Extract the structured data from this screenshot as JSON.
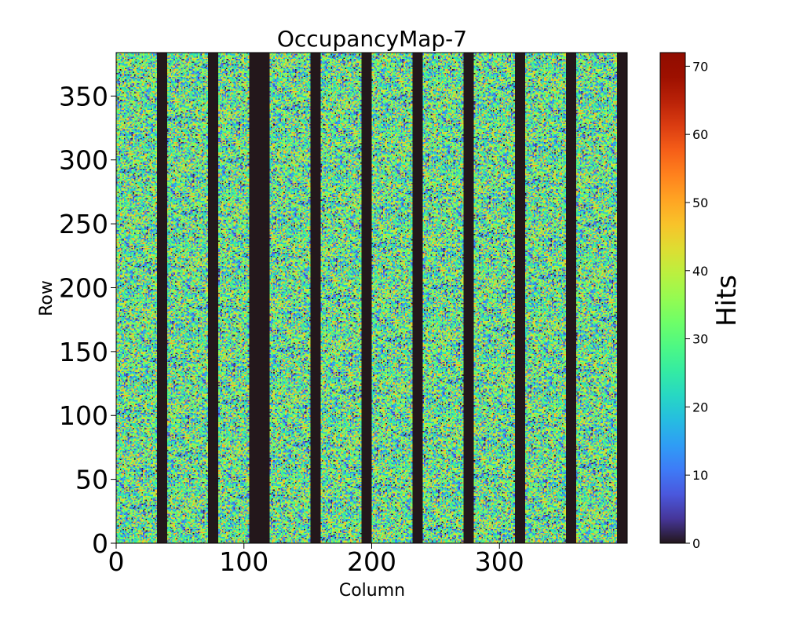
{
  "chart_data": {
    "type": "heatmap",
    "title": "OccupancyMap-7",
    "xlabel": "Column",
    "ylabel": "Row",
    "xlim": [
      0,
      400
    ],
    "ylim": [
      0,
      384
    ],
    "x_ticks": [
      0,
      100,
      200,
      300
    ],
    "y_ticks": [
      0,
      50,
      100,
      150,
      200,
      250,
      300,
      350
    ],
    "colorbar": {
      "label": "Hits",
      "range": [
        0,
        72
      ],
      "ticks": [
        0,
        10,
        20,
        30,
        40,
        50,
        60,
        70
      ],
      "colormap": "turbo"
    },
    "dead_column_bands": [
      [
        32,
        40
      ],
      [
        72,
        80
      ],
      [
        104,
        120
      ],
      [
        152,
        160
      ],
      [
        192,
        200
      ],
      [
        232,
        240
      ],
      [
        272,
        280
      ],
      [
        312,
        320
      ],
      [
        352,
        360
      ],
      [
        392,
        400
      ]
    ],
    "active_hits_range": [
      0,
      50
    ],
    "active_hits_typical": 30
  },
  "colors": {
    "dead": "#30123b",
    "frame": "#000000"
  }
}
